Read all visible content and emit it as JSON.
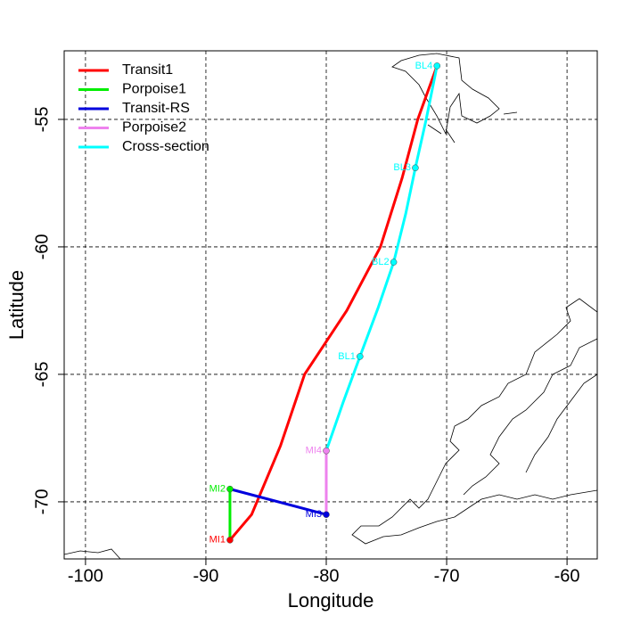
{
  "chart_data": {
    "type": "line",
    "xlabel": "Longitude",
    "ylabel": "Latitude",
    "xlim": [
      -101.77,
      -57.49
    ],
    "ylim": [
      -72.24,
      -52.31
    ],
    "xticks": [
      -100,
      -90,
      -80,
      -70,
      -60
    ],
    "yticks": [
      -55,
      -60,
      -65,
      -70
    ],
    "grid": true,
    "legend": "top-left",
    "series": [
      {
        "name": "Transit1",
        "color": "#ff0000",
        "x": [
          -88,
          -86.2,
          -83.8,
          -81.8,
          -78.3,
          -75.5,
          -73.7,
          -72.4,
          -70.8
        ],
        "y": [
          -71.5,
          -70.5,
          -67.8,
          -65,
          -62.5,
          -60,
          -57.3,
          -55,
          -52.9
        ]
      },
      {
        "name": "Porpoise1",
        "color": "#00ee00",
        "x": [
          -88,
          -88
        ],
        "y": [
          -71.5,
          -69.5
        ]
      },
      {
        "name": "Transit-RS",
        "color": "#0000dd",
        "x": [
          -88,
          -80
        ],
        "y": [
          -69.5,
          -70.5
        ]
      },
      {
        "name": "Porpoise2",
        "color": "#ee82ee",
        "x": [
          -80,
          -80
        ],
        "y": [
          -70.5,
          -68
        ]
      },
      {
        "name": "Cross-section",
        "color": "#00ffff",
        "x": [
          -80,
          -78.6,
          -77.2,
          -75.7,
          -74.4,
          -73.4,
          -72.6,
          -71.7,
          -70.8
        ],
        "y": [
          -68,
          -66.1,
          -64.3,
          -62.4,
          -60.6,
          -58.7,
          -56.9,
          -55,
          -52.9
        ]
      }
    ],
    "points": [
      {
        "label": "MI1",
        "color": "#ff0000",
        "x": -88,
        "y": -71.5
      },
      {
        "label": "MI2",
        "color": "#00ee00",
        "x": -88,
        "y": -69.5
      },
      {
        "label": "MI3",
        "color": "#0000dd",
        "x": -80,
        "y": -70.5
      },
      {
        "label": "MI4",
        "color": "#ee82ee",
        "x": -80,
        "y": -68
      },
      {
        "label": "BL1",
        "color": "#00ffff",
        "x": -77.2,
        "y": -64.3
      },
      {
        "label": "BL2",
        "color": "#00ffff",
        "x": -74.4,
        "y": -60.6
      },
      {
        "label": "BL3",
        "color": "#00ffff",
        "x": -72.6,
        "y": -56.9
      },
      {
        "label": "BL4",
        "color": "#00ffff",
        "x": -70.8,
        "y": -52.9
      }
    ]
  }
}
